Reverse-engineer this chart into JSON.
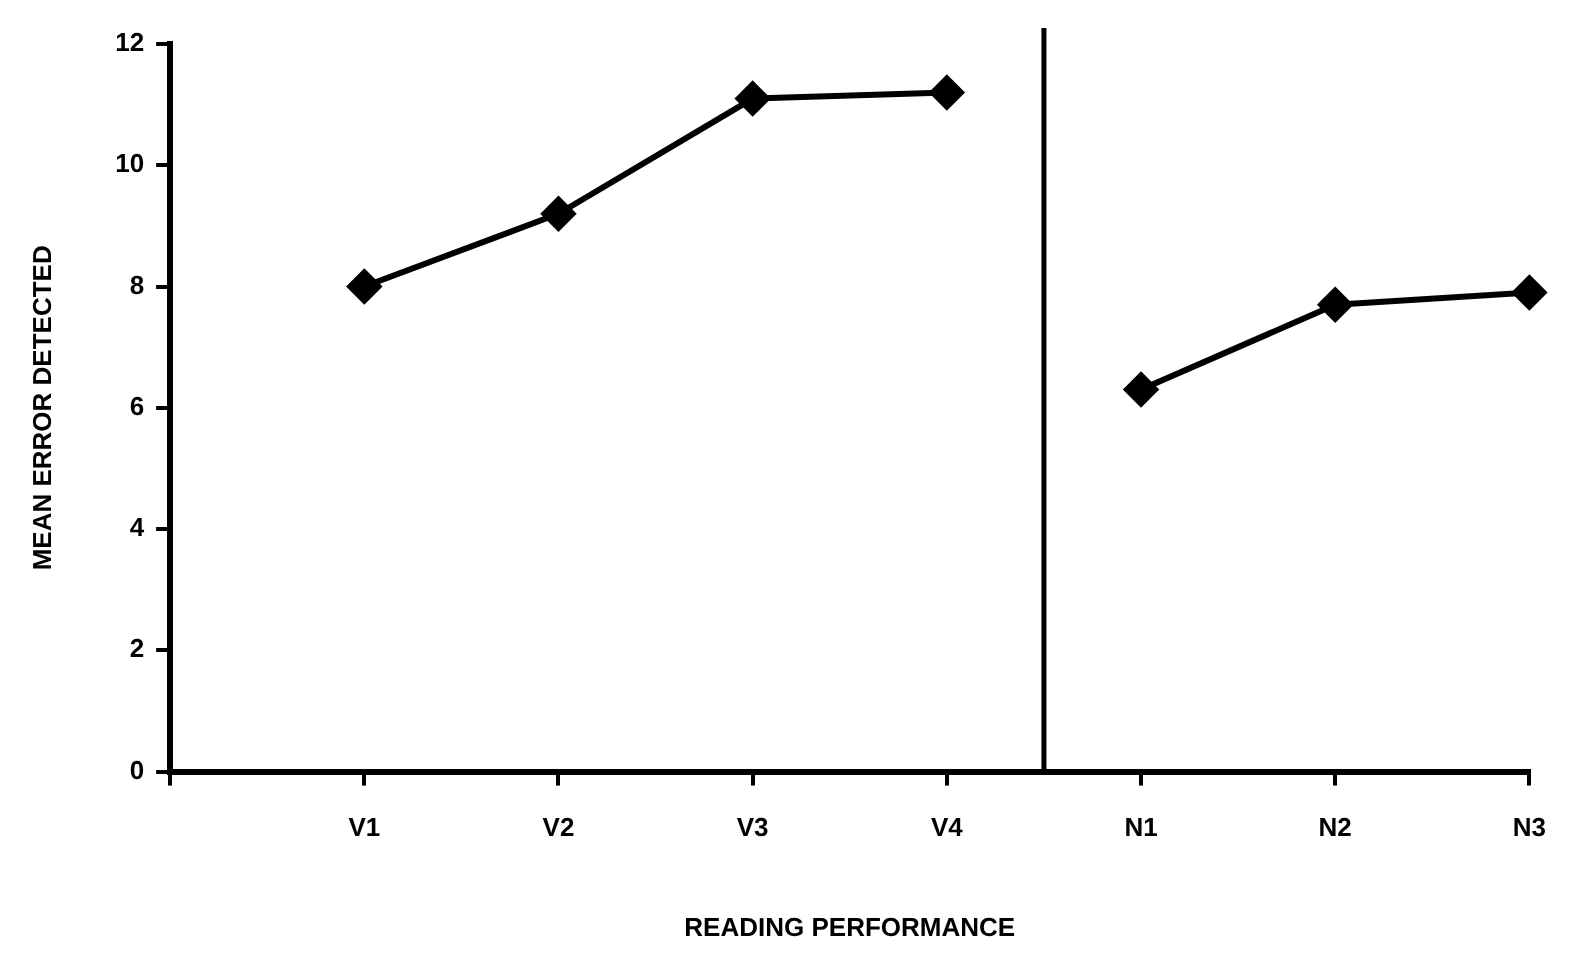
{
  "chart_data": {
    "type": "line",
    "xlabel": "READING PERFORMANCE",
    "ylabel": "MEAN ERROR DETECTED",
    "categories": [
      null,
      "V1",
      "V2",
      "V3",
      "V4",
      "N1",
      "N2",
      "N3"
    ],
    "ylim": [
      0,
      12
    ],
    "yticks": [
      0,
      2,
      4,
      6,
      8,
      10,
      12
    ],
    "series": [
      {
        "color": "#000000",
        "values": [
          null,
          8.0,
          9.2,
          11.1,
          11.2,
          null,
          null,
          null
        ]
      },
      {
        "color": "#000000",
        "values": [
          null,
          null,
          null,
          null,
          null,
          6.3,
          7.7,
          7.9
        ]
      }
    ],
    "grid": false,
    "legend": false,
    "marker": "diamond",
    "line_style": "solid"
  }
}
